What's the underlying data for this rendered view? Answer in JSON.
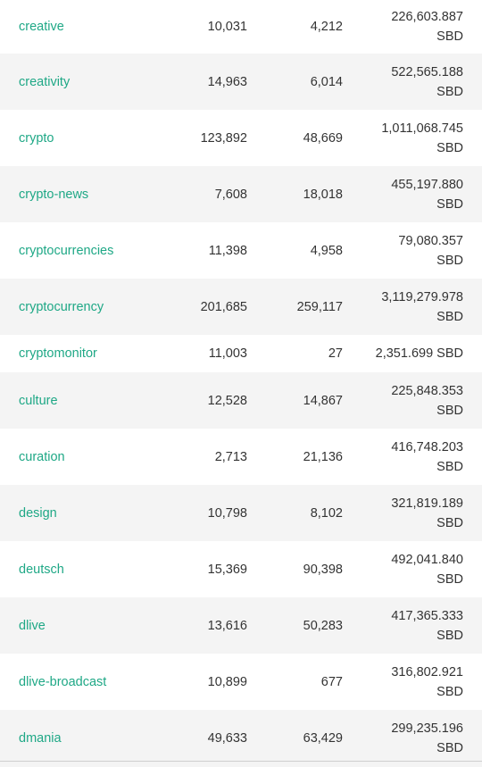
{
  "rows": [
    {
      "tag": "creative",
      "posts": "10,031",
      "comments": "4,212",
      "payout_amount": "226,603.887",
      "payout_unit": "SBD"
    },
    {
      "tag": "creativity",
      "posts": "14,963",
      "comments": "6,014",
      "payout_amount": "522,565.188",
      "payout_unit": "SBD"
    },
    {
      "tag": "crypto",
      "posts": "123,892",
      "comments": "48,669",
      "payout_amount": "1,011,068.745",
      "payout_unit": "SBD"
    },
    {
      "tag": "crypto-news",
      "posts": "7,608",
      "comments": "18,018",
      "payout_amount": "455,197.880",
      "payout_unit": "SBD"
    },
    {
      "tag": "cryptocurrencies",
      "posts": "11,398",
      "comments": "4,958",
      "payout_amount": "79,080.357",
      "payout_unit": "SBD"
    },
    {
      "tag": "cryptocurrency",
      "posts": "201,685",
      "comments": "259,117",
      "payout_amount": "3,119,279.978",
      "payout_unit": "SBD"
    },
    {
      "tag": "cryptomonitor",
      "posts": "11,003",
      "comments": "27",
      "payout_amount": "2,351.699",
      "payout_unit": "SBD"
    },
    {
      "tag": "culture",
      "posts": "12,528",
      "comments": "14,867",
      "payout_amount": "225,848.353",
      "payout_unit": "SBD"
    },
    {
      "tag": "curation",
      "posts": "2,713",
      "comments": "21,136",
      "payout_amount": "416,748.203",
      "payout_unit": "SBD"
    },
    {
      "tag": "design",
      "posts": "10,798",
      "comments": "8,102",
      "payout_amount": "321,819.189",
      "payout_unit": "SBD"
    },
    {
      "tag": "deutsch",
      "posts": "15,369",
      "comments": "90,398",
      "payout_amount": "492,041.840",
      "payout_unit": "SBD"
    },
    {
      "tag": "dlive",
      "posts": "13,616",
      "comments": "50,283",
      "payout_amount": "417,365.333",
      "payout_unit": "SBD"
    },
    {
      "tag": "dlive-broadcast",
      "posts": "10,899",
      "comments": "677",
      "payout_amount": "316,802.921",
      "payout_unit": "SBD"
    },
    {
      "tag": "dmania",
      "posts": "49,633",
      "comments": "63,429",
      "payout_amount": "299,235.196",
      "payout_unit": "SBD"
    }
  ]
}
